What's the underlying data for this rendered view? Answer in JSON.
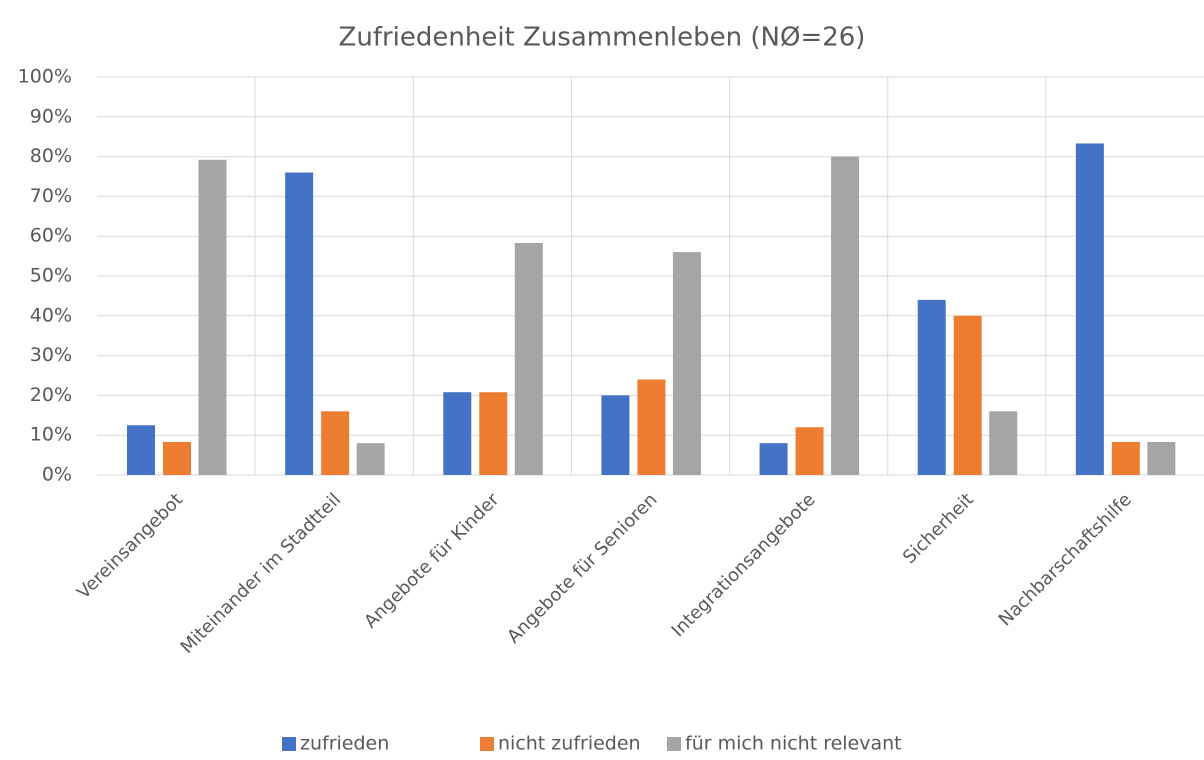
{
  "chart_data": {
    "type": "bar",
    "title": "Zufriedenheit Zusammenleben (NØ=26)",
    "categories": [
      "Vereinsangebot",
      "Miteinander im Stadtteil",
      "Angebote für Kinder",
      "Angebote für Senioren",
      "Integrationsangebote",
      "Sicherheit",
      "Nachbarschaftshilfe"
    ],
    "series": [
      {
        "name": "zufrieden",
        "color": "#4472c4",
        "values": [
          12.5,
          76,
          20.8,
          20,
          8,
          44,
          83.3
        ]
      },
      {
        "name": "nicht zufrieden",
        "color": "#ed7d31",
        "values": [
          8.3,
          16,
          20.8,
          24,
          12,
          40,
          8.3
        ]
      },
      {
        "name": "für mich nicht relevant",
        "color": "#a5a5a5",
        "values": [
          79.2,
          8,
          58.3,
          56,
          80,
          16,
          8.3
        ]
      }
    ],
    "ylim": [
      0,
      100
    ],
    "yticks": [
      {
        "value": 0,
        "label": "0%"
      },
      {
        "value": 10,
        "label": "10%"
      },
      {
        "value": 20,
        "label": "20%"
      },
      {
        "value": 30,
        "label": "30%"
      },
      {
        "value": 40,
        "label": "40%"
      },
      {
        "value": 50,
        "label": "50%"
      },
      {
        "value": 60,
        "label": "60%"
      },
      {
        "value": 70,
        "label": "70%"
      },
      {
        "value": 80,
        "label": "80%"
      },
      {
        "value": 90,
        "label": "90%"
      },
      {
        "value": 100,
        "label": "100%"
      }
    ],
    "grid": true,
    "legend": "bottom"
  }
}
